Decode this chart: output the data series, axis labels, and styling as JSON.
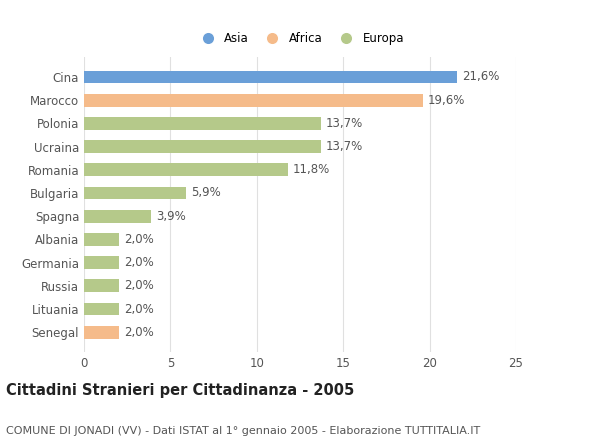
{
  "categories": [
    "Cina",
    "Marocco",
    "Polonia",
    "Ucraina",
    "Romania",
    "Bulgaria",
    "Spagna",
    "Albania",
    "Germania",
    "Russia",
    "Lituania",
    "Senegal"
  ],
  "values": [
    21.6,
    19.6,
    13.7,
    13.7,
    11.8,
    5.9,
    3.9,
    2.0,
    2.0,
    2.0,
    2.0,
    2.0
  ],
  "labels": [
    "21,6%",
    "19,6%",
    "13,7%",
    "13,7%",
    "11,8%",
    "5,9%",
    "3,9%",
    "2,0%",
    "2,0%",
    "2,0%",
    "2,0%",
    "2,0%"
  ],
  "colors": [
    "#6a9fd8",
    "#f5bb8a",
    "#b5c98a",
    "#b5c98a",
    "#b5c98a",
    "#b5c98a",
    "#b5c98a",
    "#b5c98a",
    "#b5c98a",
    "#b5c98a",
    "#b5c98a",
    "#f5bb8a"
  ],
  "legend_labels": [
    "Asia",
    "Africa",
    "Europa"
  ],
  "legend_colors": [
    "#6a9fd8",
    "#f5bb8a",
    "#b5c98a"
  ],
  "title": "Cittadini Stranieri per Cittadinanza - 2005",
  "subtitle": "COMUNE DI JONADI (VV) - Dati ISTAT al 1° gennaio 2005 - Elaborazione TUTTITALIA.IT",
  "xlim": [
    0,
    25
  ],
  "xticks": [
    0,
    5,
    10,
    15,
    20,
    25
  ],
  "background_color": "#ffffff",
  "grid_color": "#e0e0e0",
  "bar_height": 0.55,
  "label_fontsize": 8.5,
  "tick_fontsize": 8.5,
  "title_fontsize": 10.5,
  "subtitle_fontsize": 8.0
}
